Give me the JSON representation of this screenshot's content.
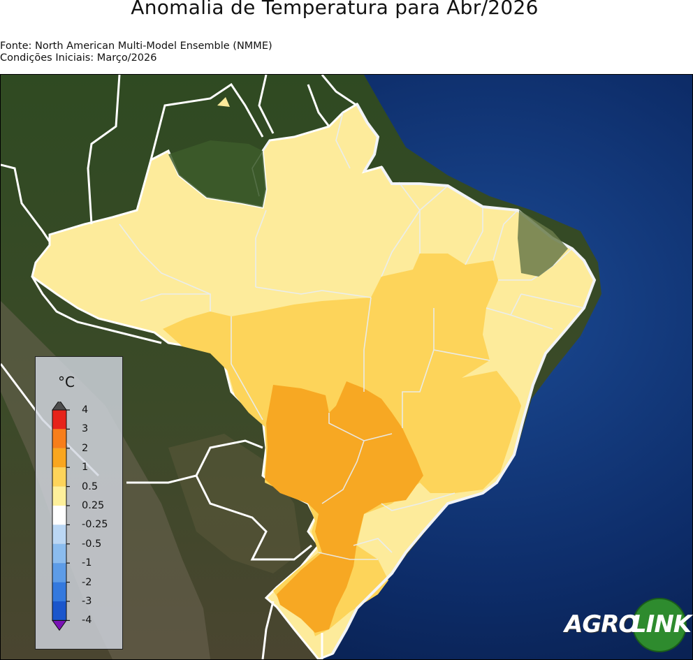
{
  "header": {
    "title": "Anomalia de Temperatura para Abr/2026",
    "source_line": "Fonte: North American Multi-Model Ensemble (NMME)",
    "initial_conditions_line": "Condições Iniciais: Março/2026"
  },
  "legend": {
    "unit": "°C",
    "ticks": [
      "4",
      "3",
      "2",
      "1",
      "0.5",
      "0.25",
      "-0.25",
      "-0.5",
      "-1",
      "-2",
      "-3",
      "-4"
    ],
    "colors": [
      "#e6231a",
      "#f77e1a",
      "#f9a61f",
      "#fdd45a",
      "#fef09b",
      "#ffffff",
      "#bbd7f4",
      "#8bbcee",
      "#5d9ce7",
      "#3479de",
      "#1b56cc",
      "#7e1bc0"
    ],
    "extend_top_color": "#4d4d4d",
    "extend_bottom_color": "#7a12b6"
  },
  "map": {
    "anomaly_colors": {
      "0.25_to_0.5": "#fdeb9b",
      "0.5_to_1": "#fdd45a",
      "1_to_2": "#f9b02a",
      "2_to_3": "#f7a31e"
    },
    "ocean_color": "#0b2b66",
    "land_color": "#2e4a24"
  },
  "logo": {
    "part1": "AGRO",
    "part2": "LINK",
    "green": "#2e8b2e"
  }
}
